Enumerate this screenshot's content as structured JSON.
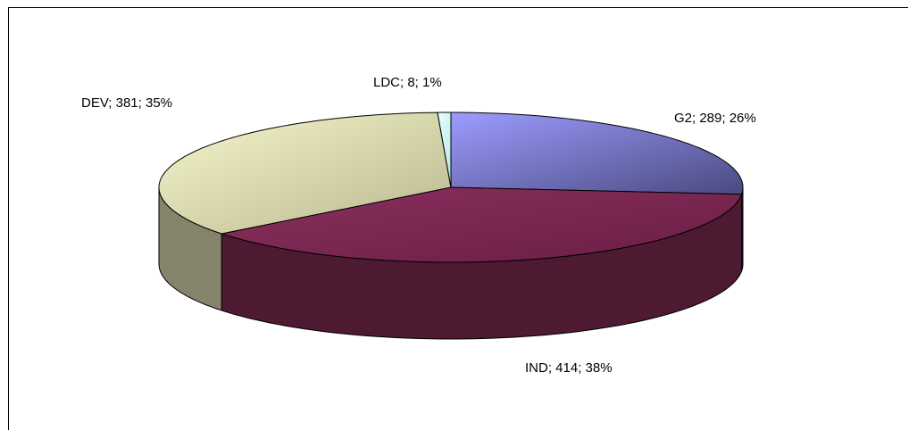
{
  "chart_data": {
    "type": "pie",
    "style": "3d",
    "title": "",
    "legend": "none",
    "categories": [
      "G2",
      "IND",
      "DEV",
      "LDC"
    ],
    "values": [
      289,
      414,
      381,
      8
    ],
    "percentages": [
      26,
      38,
      35,
      1
    ],
    "labels": [
      "G2; 289; 26%",
      "IND; 414; 38%",
      "DEV; 381; 35%",
      "LDC; 8; 1%"
    ],
    "colors": {
      "G2": "#8c8ce6",
      "IND": "#8a2c5c",
      "DEV": "#ecebb8",
      "LDC": "#d8f8f8"
    }
  }
}
